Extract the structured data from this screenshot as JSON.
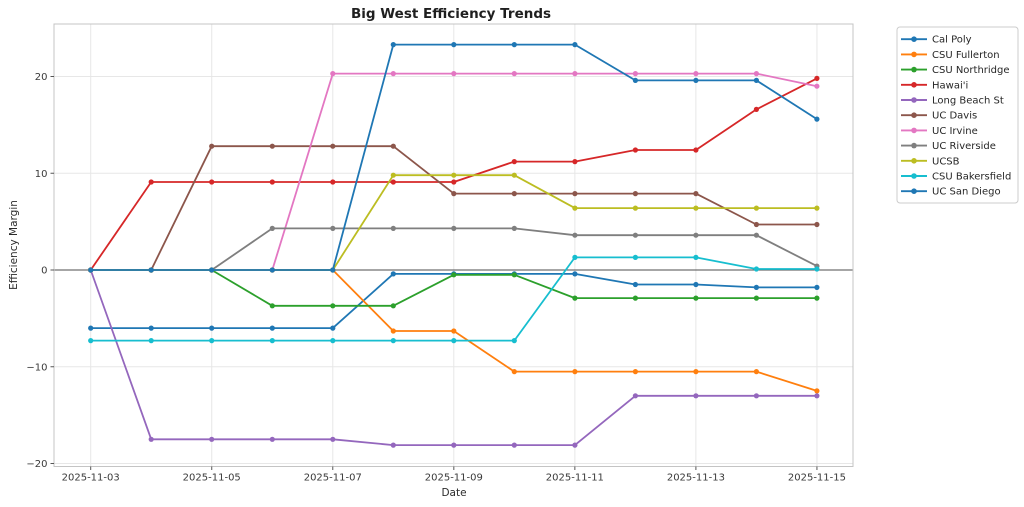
{
  "chart_data": {
    "type": "line",
    "title": "Big West Efficiency Trends",
    "xlabel": "Date",
    "ylabel": "Efficiency Margin",
    "x": [
      "2025-11-03",
      "2025-11-04",
      "2025-11-05",
      "2025-11-06",
      "2025-11-07",
      "2025-11-08",
      "2025-11-09",
      "2025-11-10",
      "2025-11-11",
      "2025-11-12",
      "2025-11-13",
      "2025-11-14",
      "2025-11-15"
    ],
    "xtick_labels": [
      "2025-11-03",
      "2025-11-05",
      "2025-11-07",
      "2025-11-09",
      "2025-11-11",
      "2025-11-13",
      "2025-11-15"
    ],
    "yticks": [
      -20,
      -10,
      0,
      10,
      20
    ],
    "ylim": [
      -20.4,
      25.4
    ],
    "grid": true,
    "zero_line": true,
    "legend_position": "right",
    "marker": "circle",
    "series": [
      {
        "name": "Cal Poly",
        "color": "#1f77b4",
        "values": [
          -6.0,
          -6.0,
          -6.0,
          -6.0,
          -6.0,
          -0.4,
          -0.4,
          -0.4,
          -0.4,
          -1.5,
          -1.5,
          -1.8,
          -1.8
        ]
      },
      {
        "name": "CSU Fullerton",
        "color": "#ff7f0e",
        "values": [
          0,
          0,
          0,
          0,
          0,
          -6.3,
          -6.3,
          -10.5,
          -10.5,
          -10.5,
          -10.5,
          -10.5,
          -12.5
        ]
      },
      {
        "name": "CSU Northridge",
        "color": "#2ca02c",
        "values": [
          0,
          0,
          0,
          -3.7,
          -3.7,
          -3.7,
          -0.5,
          -0.5,
          -2.9,
          -2.9,
          -2.9,
          -2.9,
          -2.9
        ]
      },
      {
        "name": "Hawai'i",
        "color": "#d62728",
        "values": [
          0,
          9.1,
          9.1,
          9.1,
          9.1,
          9.1,
          9.1,
          11.2,
          11.2,
          12.4,
          12.4,
          16.6,
          19.8
        ]
      },
      {
        "name": "Long Beach St",
        "color": "#9467bd",
        "values": [
          0,
          -17.5,
          -17.5,
          -17.5,
          -17.5,
          -18.1,
          -18.1,
          -18.1,
          -18.1,
          -13.0,
          -13.0,
          -13.0,
          -13.0
        ]
      },
      {
        "name": "UC Davis",
        "color": "#8c564b",
        "values": [
          0,
          0,
          12.8,
          12.8,
          12.8,
          12.8,
          7.9,
          7.9,
          7.9,
          7.9,
          7.9,
          4.7,
          4.7
        ]
      },
      {
        "name": "UC Irvine",
        "color": "#e377c2",
        "values": [
          0,
          0,
          0,
          0,
          20.3,
          20.3,
          20.3,
          20.3,
          20.3,
          20.3,
          20.3,
          20.3,
          19.0
        ]
      },
      {
        "name": "UC Riverside",
        "color": "#7f7f7f",
        "values": [
          0,
          0,
          0,
          4.3,
          4.3,
          4.3,
          4.3,
          4.3,
          3.6,
          3.6,
          3.6,
          3.6,
          0.4
        ]
      },
      {
        "name": "UCSB",
        "color": "#bcbd22",
        "values": [
          0,
          0,
          0,
          0,
          0,
          9.8,
          9.8,
          9.8,
          6.4,
          6.4,
          6.4,
          6.4,
          6.4
        ]
      },
      {
        "name": "CSU Bakersfield",
        "color": "#17becf",
        "values": [
          -7.3,
          -7.3,
          -7.3,
          -7.3,
          -7.3,
          -7.3,
          -7.3,
          -7.3,
          1.3,
          1.3,
          1.3,
          0.1,
          0.1
        ]
      },
      {
        "name": "UC San Diego",
        "color": "#1f77b4",
        "values": [
          0,
          0,
          0,
          0,
          0,
          23.3,
          23.3,
          23.3,
          23.3,
          19.6,
          19.6,
          19.6,
          15.6
        ]
      }
    ],
    "style_colors": {
      "background": "#ffffff",
      "gridline": "#e7e7e7",
      "spine": "#c4c4c4",
      "zero_line": "#4d4d4d",
      "legend_border": "#cccccc"
    }
  }
}
